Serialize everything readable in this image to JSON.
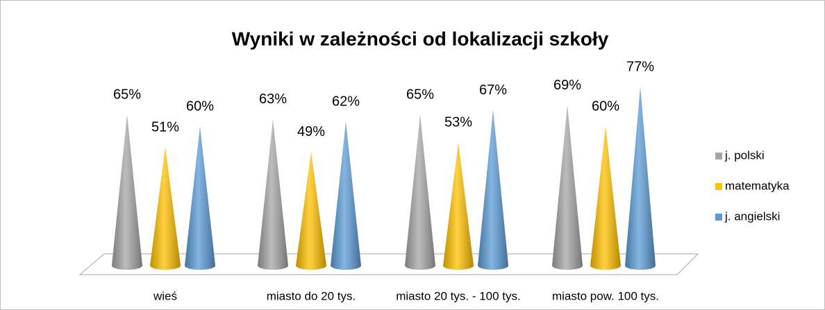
{
  "chart_data": {
    "type": "cone",
    "title": "Wyniki w zależności od lokalizacji szkoły",
    "categories": [
      "wieś",
      "miasto do 20 tys.",
      "miasto 20 tys. - 100 tys.",
      "miasto pow. 100 tys."
    ],
    "series": [
      {
        "name": "j. polski",
        "color": "#a5a5a5",
        "values": [
          65,
          63,
          65,
          69
        ],
        "value_labels": [
          "65%",
          "63%",
          "65%",
          "69%"
        ]
      },
      {
        "name": "matematyka",
        "color": "#ffc000",
        "values": [
          51,
          49,
          53,
          60
        ],
        "value_labels": [
          "51%",
          "49%",
          "53%",
          "60%"
        ]
      },
      {
        "name": "j. angielski",
        "color": "#5b9bd5",
        "values": [
          60,
          62,
          67,
          77
        ],
        "value_labels": [
          "60%",
          "62%",
          "67%",
          "77%"
        ]
      }
    ],
    "ylim": [
      0,
      100
    ],
    "legend": "right"
  }
}
